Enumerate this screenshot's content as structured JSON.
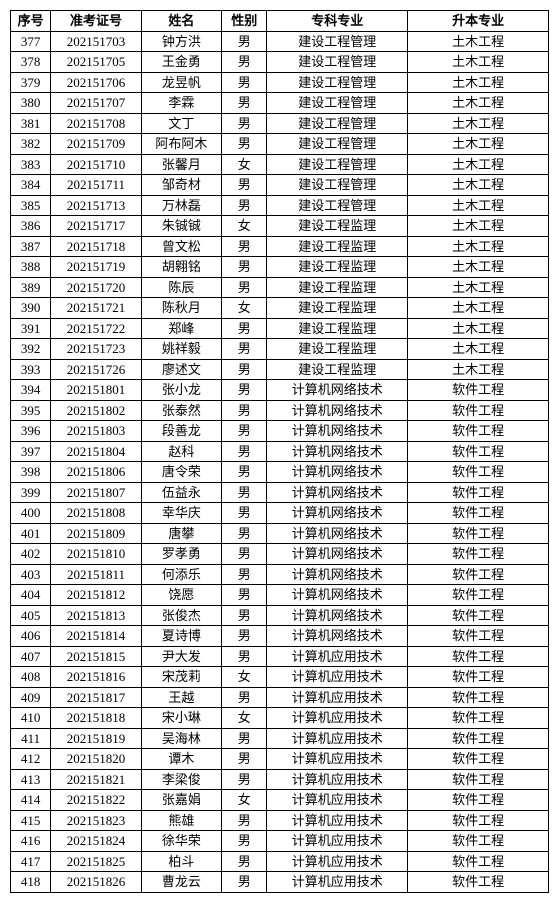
{
  "headers": {
    "seq": "序号",
    "examId": "准考证号",
    "name": "姓名",
    "gender": "性别",
    "major1": "专科专业",
    "major2": "升本专业"
  },
  "rows": [
    {
      "seq": "377",
      "examId": "202151703",
      "name": "钟方洪",
      "gender": "男",
      "major1": "建设工程管理",
      "major2": "土木工程"
    },
    {
      "seq": "378",
      "examId": "202151705",
      "name": "王金勇",
      "gender": "男",
      "major1": "建设工程管理",
      "major2": "土木工程"
    },
    {
      "seq": "379",
      "examId": "202151706",
      "name": "龙昱帆",
      "gender": "男",
      "major1": "建设工程管理",
      "major2": "土木工程"
    },
    {
      "seq": "380",
      "examId": "202151707",
      "name": "李霖",
      "gender": "男",
      "major1": "建设工程管理",
      "major2": "土木工程"
    },
    {
      "seq": "381",
      "examId": "202151708",
      "name": "文丁",
      "gender": "男",
      "major1": "建设工程管理",
      "major2": "土木工程"
    },
    {
      "seq": "382",
      "examId": "202151709",
      "name": "阿布阿木",
      "gender": "男",
      "major1": "建设工程管理",
      "major2": "土木工程"
    },
    {
      "seq": "383",
      "examId": "202151710",
      "name": "张馨月",
      "gender": "女",
      "major1": "建设工程管理",
      "major2": "土木工程"
    },
    {
      "seq": "384",
      "examId": "202151711",
      "name": "邹奇材",
      "gender": "男",
      "major1": "建设工程管理",
      "major2": "土木工程"
    },
    {
      "seq": "385",
      "examId": "202151713",
      "name": "万林磊",
      "gender": "男",
      "major1": "建设工程管理",
      "major2": "土木工程"
    },
    {
      "seq": "386",
      "examId": "202151717",
      "name": "朱铖铖",
      "gender": "女",
      "major1": "建设工程监理",
      "major2": "土木工程"
    },
    {
      "seq": "387",
      "examId": "202151718",
      "name": "曾文松",
      "gender": "男",
      "major1": "建设工程监理",
      "major2": "土木工程"
    },
    {
      "seq": "388",
      "examId": "202151719",
      "name": "胡翱铭",
      "gender": "男",
      "major1": "建设工程监理",
      "major2": "土木工程"
    },
    {
      "seq": "389",
      "examId": "202151720",
      "name": "陈辰",
      "gender": "男",
      "major1": "建设工程监理",
      "major2": "土木工程"
    },
    {
      "seq": "390",
      "examId": "202151721",
      "name": "陈秋月",
      "gender": "女",
      "major1": "建设工程监理",
      "major2": "土木工程"
    },
    {
      "seq": "391",
      "examId": "202151722",
      "name": "郑峰",
      "gender": "男",
      "major1": "建设工程监理",
      "major2": "土木工程"
    },
    {
      "seq": "392",
      "examId": "202151723",
      "name": "姚祥毅",
      "gender": "男",
      "major1": "建设工程监理",
      "major2": "土木工程"
    },
    {
      "seq": "393",
      "examId": "202151726",
      "name": "廖述文",
      "gender": "男",
      "major1": "建设工程监理",
      "major2": "土木工程"
    },
    {
      "seq": "394",
      "examId": "202151801",
      "name": "张小龙",
      "gender": "男",
      "major1": "计算机网络技术",
      "major2": "软件工程"
    },
    {
      "seq": "395",
      "examId": "202151802",
      "name": "张泰然",
      "gender": "男",
      "major1": "计算机网络技术",
      "major2": "软件工程"
    },
    {
      "seq": "396",
      "examId": "202151803",
      "name": "段善龙",
      "gender": "男",
      "major1": "计算机网络技术",
      "major2": "软件工程"
    },
    {
      "seq": "397",
      "examId": "202151804",
      "name": "赵科",
      "gender": "男",
      "major1": "计算机网络技术",
      "major2": "软件工程"
    },
    {
      "seq": "398",
      "examId": "202151806",
      "name": "唐令荣",
      "gender": "男",
      "major1": "计算机网络技术",
      "major2": "软件工程"
    },
    {
      "seq": "399",
      "examId": "202151807",
      "name": "伍益永",
      "gender": "男",
      "major1": "计算机网络技术",
      "major2": "软件工程"
    },
    {
      "seq": "400",
      "examId": "202151808",
      "name": "幸华庆",
      "gender": "男",
      "major1": "计算机网络技术",
      "major2": "软件工程"
    },
    {
      "seq": "401",
      "examId": "202151809",
      "name": "唐攀",
      "gender": "男",
      "major1": "计算机网络技术",
      "major2": "软件工程"
    },
    {
      "seq": "402",
      "examId": "202151810",
      "name": "罗孝勇",
      "gender": "男",
      "major1": "计算机网络技术",
      "major2": "软件工程"
    },
    {
      "seq": "403",
      "examId": "202151811",
      "name": "何添乐",
      "gender": "男",
      "major1": "计算机网络技术",
      "major2": "软件工程"
    },
    {
      "seq": "404",
      "examId": "202151812",
      "name": "饶愿",
      "gender": "男",
      "major1": "计算机网络技术",
      "major2": "软件工程"
    },
    {
      "seq": "405",
      "examId": "202151813",
      "name": "张俊杰",
      "gender": "男",
      "major1": "计算机网络技术",
      "major2": "软件工程"
    },
    {
      "seq": "406",
      "examId": "202151814",
      "name": "夏诗博",
      "gender": "男",
      "major1": "计算机网络技术",
      "major2": "软件工程"
    },
    {
      "seq": "407",
      "examId": "202151815",
      "name": "尹大发",
      "gender": "男",
      "major1": "计算机应用技术",
      "major2": "软件工程"
    },
    {
      "seq": "408",
      "examId": "202151816",
      "name": "宋茂莉",
      "gender": "女",
      "major1": "计算机应用技术",
      "major2": "软件工程"
    },
    {
      "seq": "409",
      "examId": "202151817",
      "name": "王越",
      "gender": "男",
      "major1": "计算机应用技术",
      "major2": "软件工程"
    },
    {
      "seq": "410",
      "examId": "202151818",
      "name": "宋小琳",
      "gender": "女",
      "major1": "计算机应用技术",
      "major2": "软件工程"
    },
    {
      "seq": "411",
      "examId": "202151819",
      "name": "吴海林",
      "gender": "男",
      "major1": "计算机应用技术",
      "major2": "软件工程"
    },
    {
      "seq": "412",
      "examId": "202151820",
      "name": "谭木",
      "gender": "男",
      "major1": "计算机应用技术",
      "major2": "软件工程"
    },
    {
      "seq": "413",
      "examId": "202151821",
      "name": "李梁俊",
      "gender": "男",
      "major1": "计算机应用技术",
      "major2": "软件工程"
    },
    {
      "seq": "414",
      "examId": "202151822",
      "name": "张嘉娟",
      "gender": "女",
      "major1": "计算机应用技术",
      "major2": "软件工程"
    },
    {
      "seq": "415",
      "examId": "202151823",
      "name": "熊雄",
      "gender": "男",
      "major1": "计算机应用技术",
      "major2": "软件工程"
    },
    {
      "seq": "416",
      "examId": "202151824",
      "name": "徐华荣",
      "gender": "男",
      "major1": "计算机应用技术",
      "major2": "软件工程"
    },
    {
      "seq": "417",
      "examId": "202151825",
      "name": "柏斗",
      "gender": "男",
      "major1": "计算机应用技术",
      "major2": "软件工程"
    },
    {
      "seq": "418",
      "examId": "202151826",
      "name": "曹龙云",
      "gender": "男",
      "major1": "计算机应用技术",
      "major2": "软件工程"
    }
  ]
}
